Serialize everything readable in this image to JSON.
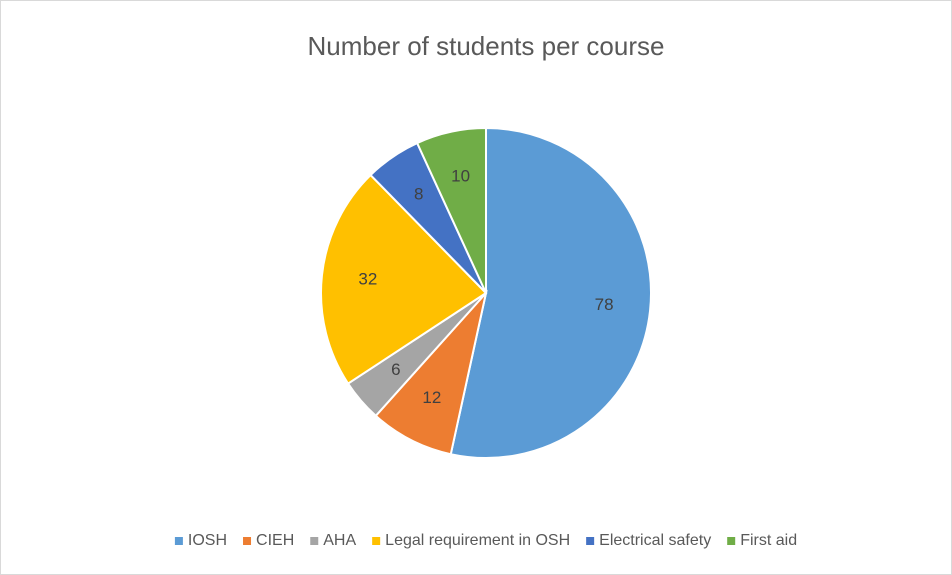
{
  "chart_data": {
    "type": "pie",
    "title": "Number of students per course",
    "categories": [
      "IOSH",
      "CIEH",
      "AHA",
      "Legal requirement in OSH",
      "Electrical safety",
      "First aid"
    ],
    "values": [
      78,
      12,
      6,
      32,
      8,
      10
    ],
    "colors": [
      "#5b9bd5",
      "#ed7d31",
      "#a5a5a5",
      "#ffc000",
      "#4472c4",
      "#70ad47"
    ],
    "legend": "bottom"
  }
}
